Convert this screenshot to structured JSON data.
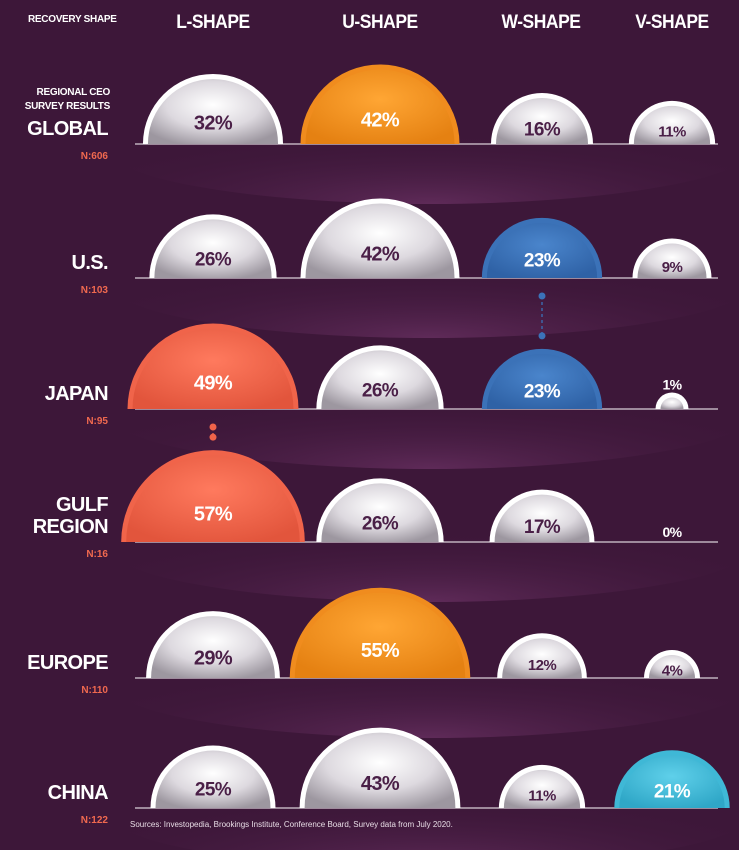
{
  "header": {
    "corner_label": "RECOVERY SHAPE",
    "subheader": "REGIONAL CEO SURVEY RESULTS"
  },
  "source": "Sources: Investopedia, Brookings Institute, Conference Board, Survey data from July 2020.",
  "colors": {
    "background": "#3d1739",
    "default_dome": "#e4e1e6",
    "highlight_l": "#f0644a",
    "highlight_u": "#f08c1e",
    "highlight_w": "#3b72b8",
    "highlight_v": "#3fb8d6",
    "n_label": "#f0694f"
  },
  "chart_data": {
    "type": "table",
    "title": "",
    "categories": [
      "L-SHAPE",
      "U-SHAPE",
      "W-SHAPE",
      "V-SHAPE"
    ],
    "unit": "%",
    "regions": [
      {
        "name": "GLOBAL",
        "n": "N:606",
        "values": [
          32,
          42,
          16,
          11
        ],
        "labels": [
          "32%",
          "42%",
          "16%",
          "11%"
        ],
        "highlight": [
          false,
          true,
          false,
          false
        ]
      },
      {
        "name": "U.S.",
        "n": "N:103",
        "values": [
          26,
          42,
          23,
          9
        ],
        "labels": [
          "26%",
          "42%",
          "23%",
          "9%"
        ],
        "highlight": [
          false,
          false,
          true,
          false
        ]
      },
      {
        "name": "JAPAN",
        "n": "N:95",
        "values": [
          49,
          26,
          23,
          1
        ],
        "labels": [
          "49%",
          "26%",
          "23%",
          "1%"
        ],
        "highlight": [
          true,
          false,
          true,
          false
        ]
      },
      {
        "name": "GULF REGION",
        "name_lines": [
          "GULF",
          "REGION"
        ],
        "n": "N:16",
        "values": [
          57,
          26,
          17,
          0
        ],
        "labels": [
          "57%",
          "26%",
          "17%",
          "0%"
        ],
        "highlight": [
          true,
          false,
          false,
          false
        ]
      },
      {
        "name": "EUROPE",
        "n": "N:110",
        "values": [
          29,
          55,
          12,
          4
        ],
        "labels": [
          "29%",
          "55%",
          "12%",
          "4%"
        ],
        "highlight": [
          false,
          true,
          false,
          false
        ]
      },
      {
        "name": "CHINA",
        "n": "N:122",
        "values": [
          25,
          43,
          11,
          21
        ],
        "labels": [
          "25%",
          "43%",
          "11%",
          "21%"
        ],
        "highlight": [
          false,
          false,
          false,
          true
        ]
      }
    ],
    "connectors": [
      {
        "from_region": "U.S.",
        "to_region": "JAPAN",
        "category": "W-SHAPE",
        "value": 23
      },
      {
        "from_region": "JAPAN",
        "to_region": "GULF REGION",
        "category": "L-SHAPE",
        "value": 57
      }
    ]
  }
}
